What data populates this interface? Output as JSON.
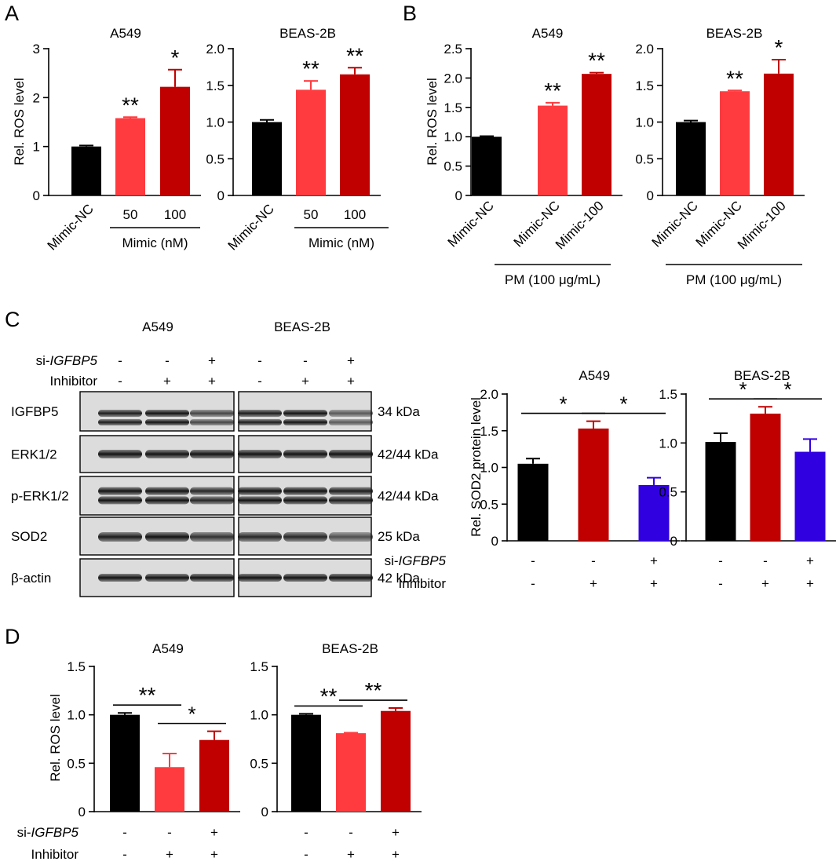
{
  "colors": {
    "black": "#000000",
    "light_red": "#ff3b3f",
    "dark_red": "#c00000",
    "blue": "#3000e0"
  },
  "panel_letters": {
    "A": "A",
    "B": "B",
    "C": "C",
    "D": "D"
  },
  "chart_data": [
    {
      "id": "A1",
      "type": "bar",
      "title": "A549",
      "ylabel": "Rel. ROS level",
      "ylim": [
        0,
        3
      ],
      "yticks": [
        "0",
        "1",
        "2",
        "3"
      ],
      "categories": [
        "Mimic-NC",
        "50",
        "100"
      ],
      "values": [
        1.0,
        1.58,
        2.22
      ],
      "errors": [
        0.02,
        0.02,
        0.35
      ],
      "bar_colors": [
        "black",
        "light_red",
        "dark_red"
      ],
      "significance": [
        "",
        "**",
        "*"
      ],
      "bracket_label": "Mimic (nM)"
    },
    {
      "id": "A2",
      "type": "bar",
      "title": "BEAS-2B",
      "ylabel": "",
      "ylim": [
        0,
        2
      ],
      "yticks": [
        "0",
        "0.5",
        "1.0",
        "1.5",
        "2.0"
      ],
      "categories": [
        "Mimic-NC",
        "50",
        "100"
      ],
      "values": [
        1.0,
        1.44,
        1.65
      ],
      "errors": [
        0.03,
        0.12,
        0.09
      ],
      "bar_colors": [
        "black",
        "light_red",
        "dark_red"
      ],
      "significance": [
        "",
        "**",
        "**"
      ],
      "bracket_label": "Mimic  (nM)"
    },
    {
      "id": "B1",
      "type": "bar",
      "title": "A549",
      "ylabel": "Rel. ROS level",
      "ylim": [
        0,
        2.5
      ],
      "yticks": [
        "0",
        "0.5",
        "1.0",
        "1.5",
        "2.0",
        "2.5"
      ],
      "categories": [
        "Mimic-NC",
        "Mimic-NC",
        "Mimic-100"
      ],
      "values": [
        1.0,
        1.53,
        2.07
      ],
      "errors": [
        0.01,
        0.05,
        0.02
      ],
      "bar_colors": [
        "black",
        "light_red",
        "dark_red"
      ],
      "significance": [
        "",
        "**",
        "**"
      ],
      "bracket_label": "PM (100 μg/mL)"
    },
    {
      "id": "B2",
      "type": "bar",
      "title": "BEAS-2B",
      "ylabel": "",
      "ylim": [
        0,
        2
      ],
      "yticks": [
        "0",
        "0.5",
        "1.0",
        "1.5",
        "2.0"
      ],
      "categories": [
        "Mimic-NC",
        "Mimic-NC",
        "Mimic-100"
      ],
      "values": [
        1.0,
        1.42,
        1.66
      ],
      "errors": [
        0.02,
        0.01,
        0.19
      ],
      "bar_colors": [
        "black",
        "light_red",
        "dark_red"
      ],
      "significance": [
        "",
        "**",
        "*"
      ],
      "bracket_label": "PM (100 μg/mL)"
    },
    {
      "id": "C1",
      "type": "bar",
      "title": "A549",
      "ylabel": "Rel. SOD2 protein level",
      "ylim": [
        0,
        2
      ],
      "yticks": [
        "0",
        "0.5",
        "1.0",
        "1.5",
        "2.0"
      ],
      "values": [
        1.05,
        1.53,
        0.76
      ],
      "errors": [
        0.07,
        0.1,
        0.1
      ],
      "bar_colors": [
        "black",
        "dark_red",
        "blue"
      ],
      "comparisons": [
        {
          "from": 0,
          "to": 1,
          "label": "*"
        },
        {
          "from": 1,
          "to": 2,
          "label": "*"
        }
      ],
      "conditions": [
        {
          "label": "si-IGFBP5",
          "values": [
            "-",
            "-",
            "+"
          ]
        },
        {
          "label": "Inhibitor",
          "values": [
            "-",
            "+",
            "+"
          ]
        }
      ]
    },
    {
      "id": "C2",
      "type": "bar",
      "title": "BEAS-2B",
      "ylabel": "",
      "ylim": [
        0,
        1.5
      ],
      "yticks": [
        "0",
        "0.5",
        "1.0",
        "1.5"
      ],
      "values": [
        1.01,
        1.3,
        0.91
      ],
      "errors": [
        0.09,
        0.07,
        0.13
      ],
      "bar_colors": [
        "black",
        "dark_red",
        "blue"
      ],
      "comparisons": [
        {
          "from": 0,
          "to": 1,
          "label": "*"
        },
        {
          "from": 1,
          "to": 2,
          "label": "*"
        }
      ],
      "conditions": [
        {
          "label": "",
          "values": [
            "-",
            "-",
            "+"
          ]
        },
        {
          "label": "",
          "values": [
            "-",
            "+",
            "+"
          ]
        }
      ]
    },
    {
      "id": "D1",
      "type": "bar",
      "title": "A549",
      "ylabel": "Rel. ROS level",
      "ylim": [
        0,
        1.5
      ],
      "yticks": [
        "0",
        "0.5",
        "1.0",
        "1.5"
      ],
      "values": [
        1.0,
        0.46,
        0.74
      ],
      "errors": [
        0.02,
        0.14,
        0.09
      ],
      "bar_colors": [
        "black",
        "light_red",
        "dark_red"
      ],
      "comparisons": [
        {
          "from": 0,
          "to": 1,
          "label": "**"
        },
        {
          "from": 1,
          "to": 2,
          "label": "*"
        }
      ],
      "conditions": [
        {
          "label": "si-IGFBP5",
          "values": [
            "-",
            "-",
            "+"
          ]
        },
        {
          "label": "Inhibitor",
          "values": [
            "-",
            "+",
            "+"
          ]
        }
      ]
    },
    {
      "id": "D2",
      "type": "bar",
      "title": "BEAS-2B",
      "ylabel": "",
      "ylim": [
        0,
        1.5
      ],
      "yticks": [
        "0",
        "0.5",
        "1.0",
        "1.5"
      ],
      "values": [
        1.0,
        0.81,
        1.04
      ],
      "errors": [
        0.01,
        0.005,
        0.03
      ],
      "bar_colors": [
        "black",
        "light_red",
        "dark_red"
      ],
      "comparisons": [
        {
          "from": 0,
          "to": 1,
          "label": "**"
        },
        {
          "from": 1,
          "to": 2,
          "label": "**"
        }
      ],
      "conditions": [
        {
          "label": "",
          "values": [
            "-",
            "-",
            "+"
          ]
        },
        {
          "label": "",
          "values": [
            "-",
            "+",
            "+"
          ]
        }
      ]
    }
  ],
  "blot": {
    "cell_titles": [
      "A549",
      "BEAS-2B"
    ],
    "condition_rows": [
      {
        "label": "si-IGFBP5",
        "values": [
          "-",
          "-",
          "+",
          "-",
          "-",
          "+"
        ]
      },
      {
        "label": "Inhibitor",
        "values": [
          "-",
          "+",
          "+",
          "-",
          "+",
          "+"
        ]
      }
    ],
    "proteins": [
      {
        "name": "IGFBP5",
        "size": "34 kDa"
      },
      {
        "name": "ERK1/2",
        "size": "42/44 kDa"
      },
      {
        "name": "p-ERK1/2",
        "size": "42/44 kDa"
      },
      {
        "name": "SOD2",
        "size": "25 kDa"
      },
      {
        "name": "β-actin",
        "size": "42 kDa"
      }
    ]
  }
}
